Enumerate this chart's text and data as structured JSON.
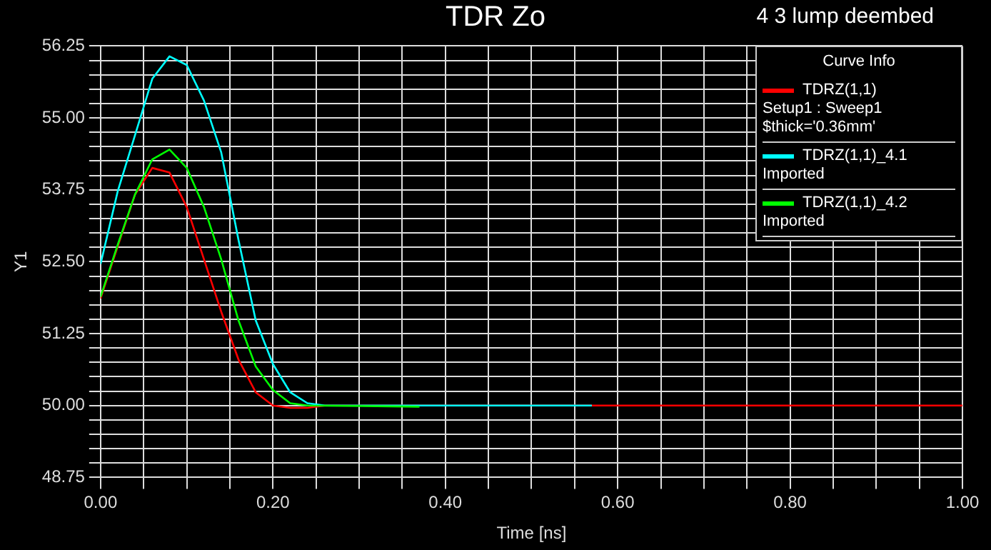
{
  "chart_data": {
    "type": "line",
    "title": "TDR Zo",
    "subtitle": "4 3 lump deembed",
    "xlabel": "Time [ns]",
    "ylabel": "Y1",
    "legend_title": "Curve Info",
    "legend": "top right",
    "grid": true,
    "marker": "none",
    "line_style": "solid",
    "xlim": [
      0,
      1
    ],
    "ylim": [
      48.75,
      56.25
    ],
    "xticks": [
      {
        "value": 0,
        "label": "0.00"
      },
      {
        "value": 0.05,
        "label": null
      },
      {
        "value": 0.1,
        "label": null
      },
      {
        "value": 0.15,
        "label": null
      },
      {
        "value": 0.2,
        "label": "0.20"
      },
      {
        "value": 0.25,
        "label": null
      },
      {
        "value": 0.3,
        "label": null
      },
      {
        "value": 0.35,
        "label": null
      },
      {
        "value": 0.4,
        "label": "0.40"
      },
      {
        "value": 0.45,
        "label": null
      },
      {
        "value": 0.5,
        "label": null
      },
      {
        "value": 0.55,
        "label": null
      },
      {
        "value": 0.6,
        "label": "0.60"
      },
      {
        "value": 0.65,
        "label": null
      },
      {
        "value": 0.7,
        "label": null
      },
      {
        "value": 0.75,
        "label": null
      },
      {
        "value": 0.8,
        "label": "0.80"
      },
      {
        "value": 0.85,
        "label": null
      },
      {
        "value": 0.9,
        "label": null
      },
      {
        "value": 0.95,
        "label": null
      },
      {
        "value": 1,
        "label": "1.00"
      }
    ],
    "yticks": [
      {
        "value": 48.75,
        "label": "48.75"
      },
      {
        "value": 49,
        "label": null
      },
      {
        "value": 49.25,
        "label": null
      },
      {
        "value": 49.5,
        "label": null
      },
      {
        "value": 49.75,
        "label": null
      },
      {
        "value": 50,
        "label": "50.00"
      },
      {
        "value": 50.25,
        "label": null
      },
      {
        "value": 50.5,
        "label": null
      },
      {
        "value": 50.75,
        "label": null
      },
      {
        "value": 51,
        "label": null
      },
      {
        "value": 51.25,
        "label": "51.25"
      },
      {
        "value": 51.5,
        "label": null
      },
      {
        "value": 51.75,
        "label": null
      },
      {
        "value": 52,
        "label": null
      },
      {
        "value": 52.25,
        "label": null
      },
      {
        "value": 52.5,
        "label": "52.50"
      },
      {
        "value": 52.75,
        "label": null
      },
      {
        "value": 53,
        "label": null
      },
      {
        "value": 53.25,
        "label": null
      },
      {
        "value": 53.5,
        "label": null
      },
      {
        "value": 53.75,
        "label": "53.75"
      },
      {
        "value": 54,
        "label": null
      },
      {
        "value": 54.25,
        "label": null
      },
      {
        "value": 54.5,
        "label": null
      },
      {
        "value": 54.75,
        "label": null
      },
      {
        "value": 55,
        "label": "55.00"
      },
      {
        "value": 55.25,
        "label": null
      },
      {
        "value": 55.5,
        "label": null
      },
      {
        "value": 55.75,
        "label": null
      },
      {
        "value": 56,
        "label": null
      },
      {
        "value": 56.25,
        "label": "56.25"
      }
    ],
    "series": [
      {
        "name": "TDRZ(1,1)\nSetup1 : Sweep1\n$thick='0.36mm'",
        "color": "#ff0000",
        "x": [
          0,
          0.02,
          0.04,
          0.06,
          0.08,
          0.1,
          0.12,
          0.14,
          0.16,
          0.18,
          0.2,
          0.22,
          0.24,
          0.26,
          1
        ],
        "values": [
          51.86,
          52.77,
          53.67,
          54.13,
          54.05,
          53.45,
          52.54,
          51.63,
          50.8,
          50.23,
          50,
          49.96,
          49.96,
          50,
          50
        ]
      },
      {
        "name": "TDRZ(1,1)_4.1\nImported",
        "color": "#00ffff",
        "x": [
          0,
          0.02,
          0.04,
          0.06,
          0.08,
          0.1,
          0.12,
          0.14,
          0.16,
          0.18,
          0.2,
          0.22,
          0.24,
          0.26,
          0.57
        ],
        "values": [
          52.46,
          53.73,
          54.7,
          55.68,
          56.07,
          55.92,
          55.3,
          54.4,
          52.88,
          51.48,
          50.72,
          50.23,
          50.04,
          50,
          50
        ]
      },
      {
        "name": "TDRZ(1,1)_4.2\nImported",
        "color": "#00ff00",
        "x": [
          0,
          0.02,
          0.04,
          0.06,
          0.08,
          0.1,
          0.12,
          0.14,
          0.16,
          0.18,
          0.2,
          0.22,
          0.24,
          0.37
        ],
        "values": [
          51.89,
          52.8,
          53.67,
          54.28,
          54.45,
          54.13,
          53.45,
          52.54,
          51.48,
          50.68,
          50.27,
          50.04,
          50,
          49.98
        ]
      }
    ]
  }
}
